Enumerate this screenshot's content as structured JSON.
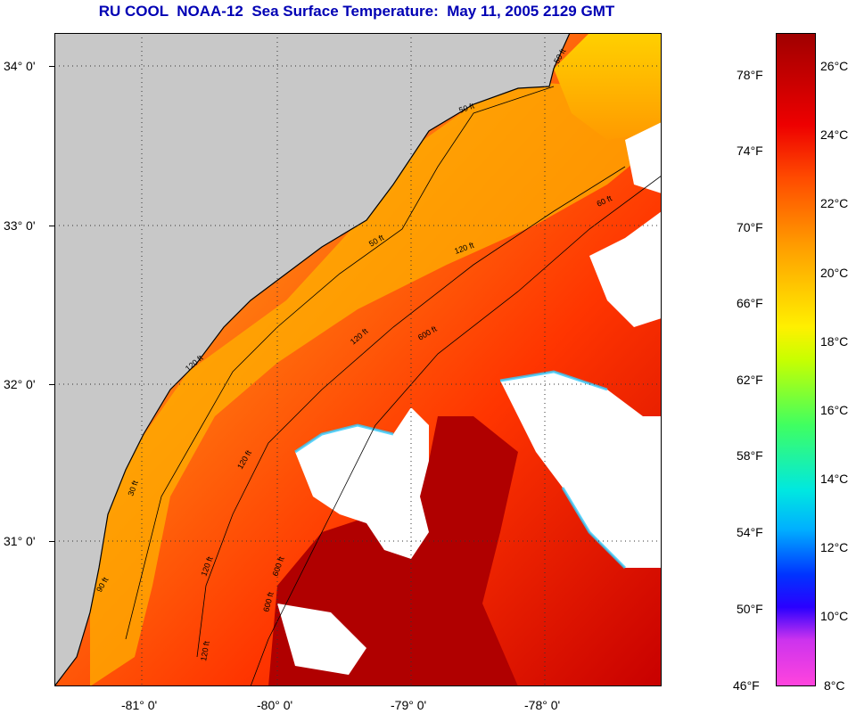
{
  "title": "RU COOL  NOAA-12  Sea Surface Temperature:  May 11, 2005 2129 GMT",
  "map": {
    "latitude_labels": [
      "34° 0'",
      "33° 0'",
      "32° 0'",
      "31° 0'"
    ],
    "longitude_labels": [
      "-81° 0'",
      "-80° 0'",
      "-79° 0'",
      "-78° 0'"
    ],
    "isobath_labels": [
      "50 ft",
      "50 ft",
      "60 ft",
      "120 ft",
      "600 ft",
      "50 ft",
      "120 ft",
      "600 ft",
      "120 ft",
      "30 ft",
      "120 ft",
      "600 ft",
      "90 ft",
      "120 ft",
      "120 ft"
    ],
    "colors": {
      "land": "#c8c8c8",
      "cloud": "#ffffff",
      "warm": "#b30000",
      "mid": "#ff3a00",
      "cool": "#ffb000"
    }
  },
  "colorbar": {
    "fahrenheit_labels": [
      "78°F",
      "74°F",
      "70°F",
      "66°F",
      "62°F",
      "58°F",
      "54°F",
      "50°F",
      "46°F"
    ],
    "celsius_labels": [
      "26°C",
      "24°C",
      "22°C",
      "20°C",
      "18°C",
      "16°C",
      "14°C",
      "12°C",
      "10°C",
      "8°C"
    ]
  }
}
